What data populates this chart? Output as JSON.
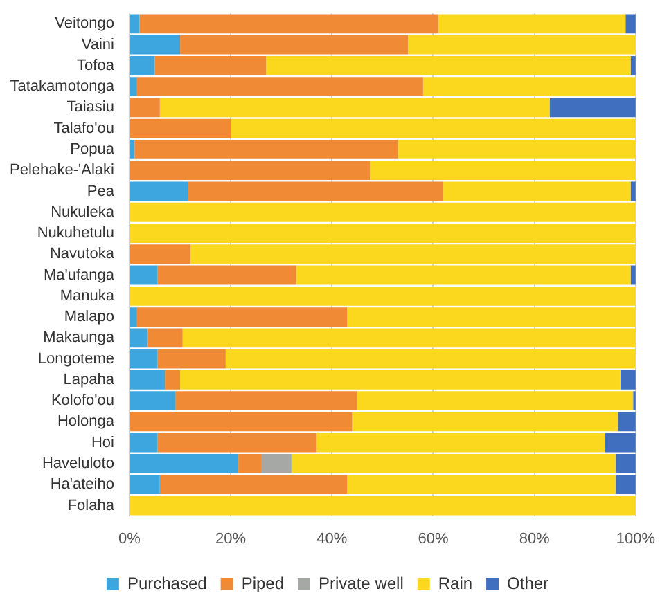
{
  "chart_data": {
    "type": "bar",
    "orientation": "horizontal",
    "stacked": true,
    "grid": "x",
    "legend": "bottom",
    "categories": [
      "Veitongo",
      "Vaini",
      "Tofoa",
      "Tatakamotonga",
      "Taiasiu",
      "Talafo'ou",
      "Popua",
      "Pelehake-'Alaki",
      "Pea",
      "Nukuleka",
      "Nukuhetulu",
      "Navutoka",
      "Ma'ufanga",
      "Manuka",
      "Malapo",
      "Makaunga",
      "Longoteme",
      "Lapaha",
      "Kolofo'ou",
      "Holonga",
      "Hoi",
      "Haveluloto",
      "Ha'ateiho",
      "Folaha"
    ],
    "xlim": [
      0,
      100
    ],
    "xticks": [
      {
        "value": 0,
        "label": "0%"
      },
      {
        "value": 20,
        "label": "20%"
      },
      {
        "value": 40,
        "label": "40%"
      },
      {
        "value": 60,
        "label": "60%"
      },
      {
        "value": 80,
        "label": "80%"
      },
      {
        "value": 100,
        "label": "100%"
      }
    ],
    "series": [
      {
        "name": "Purchased",
        "color": "#3ea6df",
        "values": [
          2,
          10,
          5,
          1.5,
          0,
          0,
          1,
          0,
          11.5,
          0,
          0,
          0,
          5.5,
          0,
          1.5,
          3.5,
          5.5,
          7,
          9,
          0,
          5.5,
          21.5,
          6,
          0
        ]
      },
      {
        "name": "Piped",
        "color": "#f08a34",
        "values": [
          59,
          45,
          22,
          56.5,
          6,
          20,
          52,
          47.5,
          50.5,
          0,
          0,
          12,
          27.5,
          0,
          41.5,
          7,
          13.5,
          3,
          36,
          44,
          31.5,
          4.5,
          37,
          0
        ]
      },
      {
        "name": "Private well",
        "color": "#a5a8a5",
        "values": [
          0,
          0,
          0,
          0,
          0,
          0,
          0,
          0,
          0,
          0,
          0,
          0,
          0,
          0,
          0,
          0,
          0,
          0,
          0,
          0,
          0,
          6,
          0,
          0
        ]
      },
      {
        "name": "Rain",
        "color": "#fbd81d",
        "values": [
          37,
          45,
          72,
          42,
          77,
          80,
          47,
          52.5,
          37,
          100,
          100,
          88,
          66,
          100,
          57,
          89.5,
          81,
          87,
          54.5,
          52.5,
          57,
          64,
          53,
          100
        ]
      },
      {
        "name": "Other",
        "color": "#3f6fbe",
        "values": [
          2,
          0,
          1,
          0,
          17,
          0,
          0,
          0,
          1,
          0,
          0,
          0,
          1,
          0,
          0,
          0,
          0,
          3,
          0.5,
          3.5,
          6,
          4,
          4,
          0
        ]
      }
    ]
  }
}
